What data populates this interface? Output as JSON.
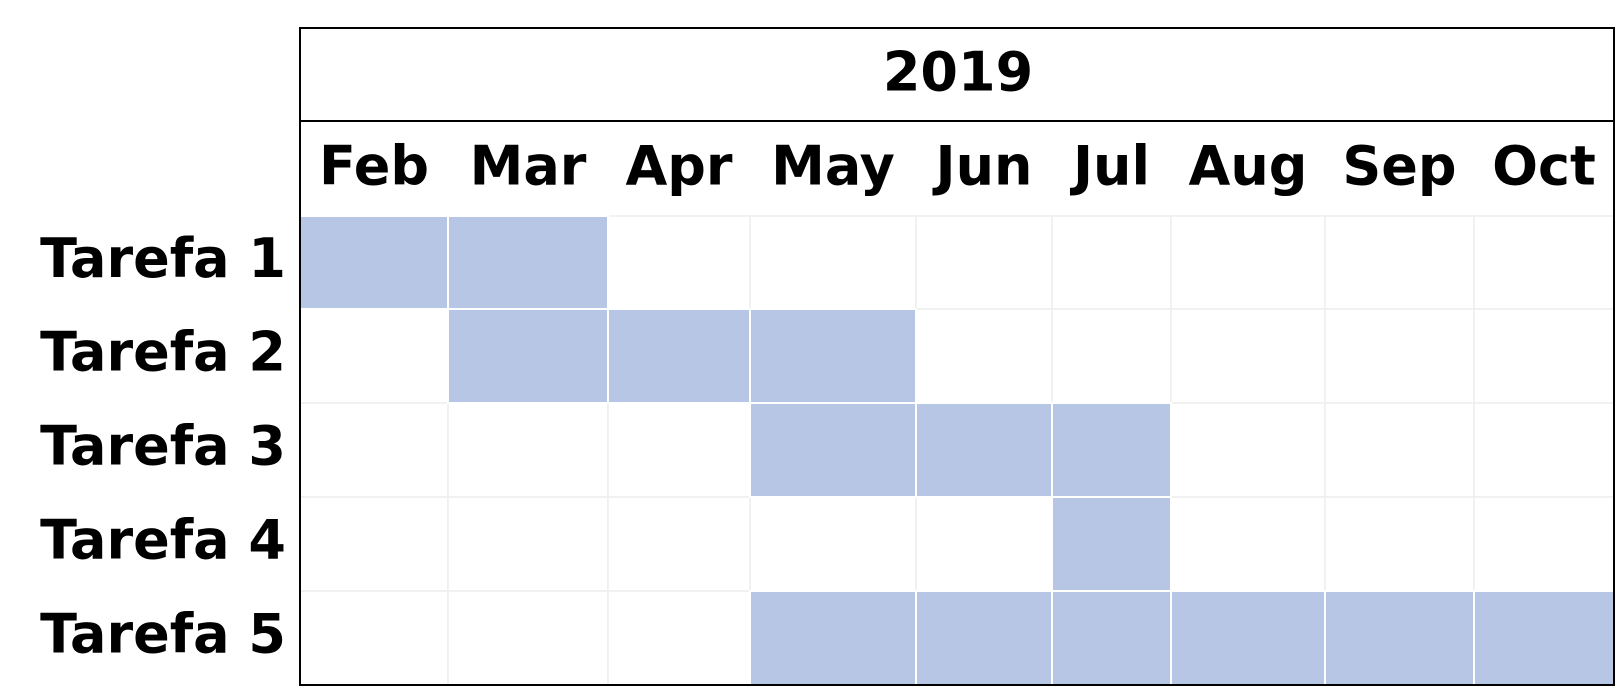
{
  "chart_data": {
    "type": "table",
    "year": "2019",
    "months": [
      "Feb",
      "Mar",
      "Apr",
      "May",
      "Jun",
      "Jul",
      "Aug",
      "Sep",
      "Oct"
    ],
    "tasks": [
      {
        "label": "Tarefa 1",
        "start": "Feb",
        "end": "Mar"
      },
      {
        "label": "Tarefa 2",
        "start": "Mar",
        "end": "May"
      },
      {
        "label": "Tarefa 3",
        "start": "May",
        "end": "Jul"
      },
      {
        "label": "Tarefa 4",
        "start": "Jul",
        "end": "Jul"
      },
      {
        "label": "Tarefa 5",
        "start": "May",
        "end": "Oct"
      }
    ],
    "fill_color": "#b7c6e4",
    "grid_color": "#eeeeee",
    "border_color": "#000000"
  }
}
